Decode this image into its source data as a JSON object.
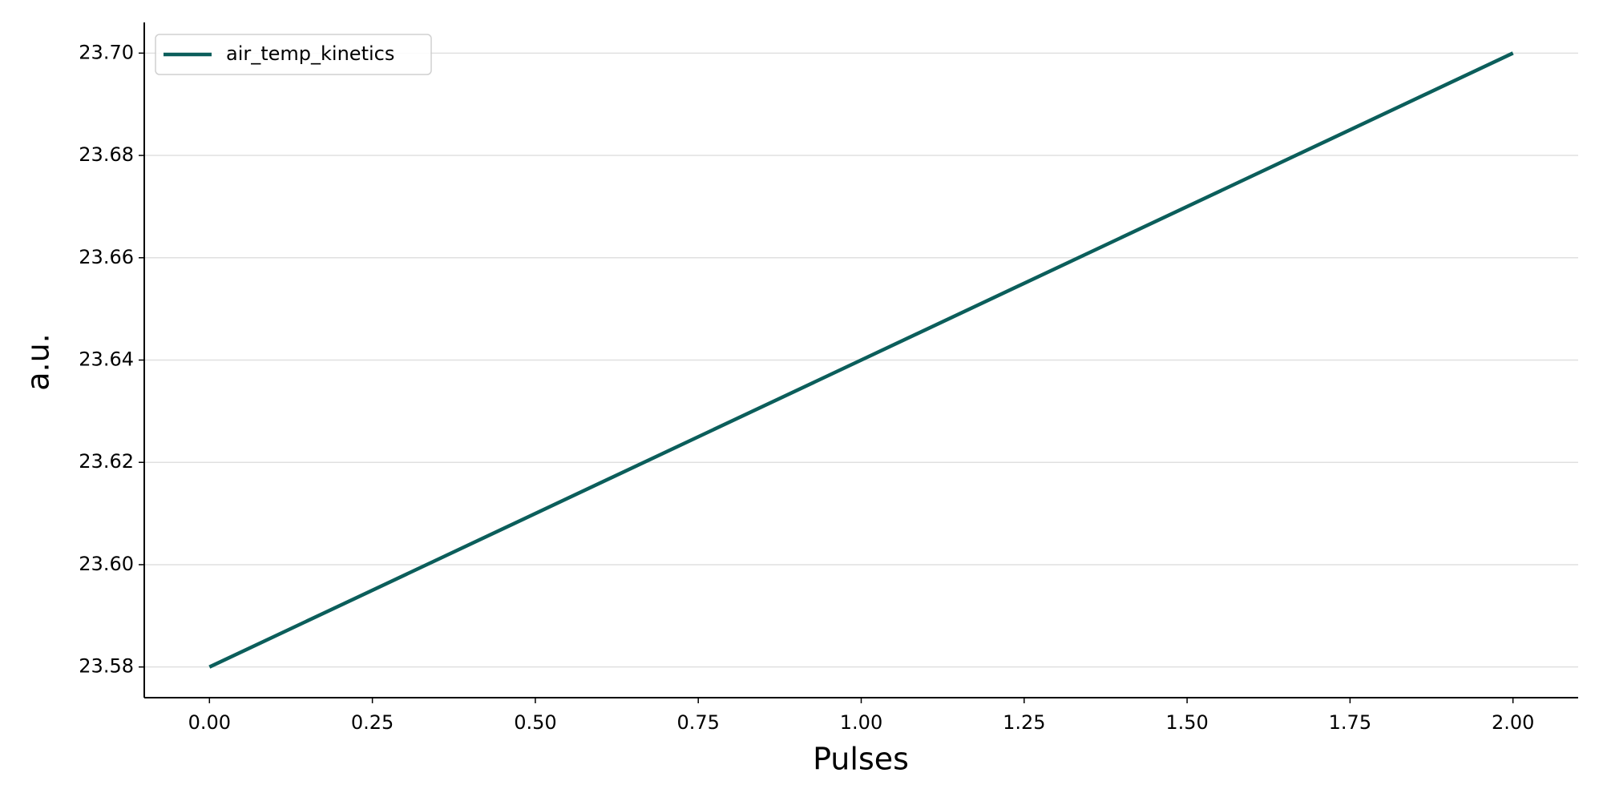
{
  "chart_data": {
    "type": "line",
    "x": [
      0,
      1,
      2
    ],
    "series": [
      {
        "name": "air_temp_kinetics",
        "color": "#0b5e5b",
        "values": [
          23.58,
          23.64,
          23.7
        ]
      }
    ],
    "xlabel": "Pulses",
    "ylabel": "a.u.",
    "xlim": [
      -0.1,
      2.1
    ],
    "xticks": [
      {
        "value": 0,
        "label": "0.00"
      },
      {
        "value": 0.25,
        "label": "0.25"
      },
      {
        "value": 0.5,
        "label": "0.50"
      },
      {
        "value": 0.75,
        "label": "0.75"
      },
      {
        "value": 1,
        "label": "1.00"
      },
      {
        "value": 1.25,
        "label": "1.25"
      },
      {
        "value": 1.5,
        "label": "1.50"
      },
      {
        "value": 1.75,
        "label": "1.75"
      },
      {
        "value": 2,
        "label": "2.00"
      }
    ],
    "ylim": [
      23.574,
      23.706
    ],
    "yticks": [
      23.58,
      {
        "value": 23.6,
        "label": "23.60"
      },
      23.62,
      23.64,
      23.66,
      23.68,
      {
        "value": 23.7,
        "label": "23.70"
      }
    ],
    "grid": "y",
    "legend": "upper left"
  }
}
